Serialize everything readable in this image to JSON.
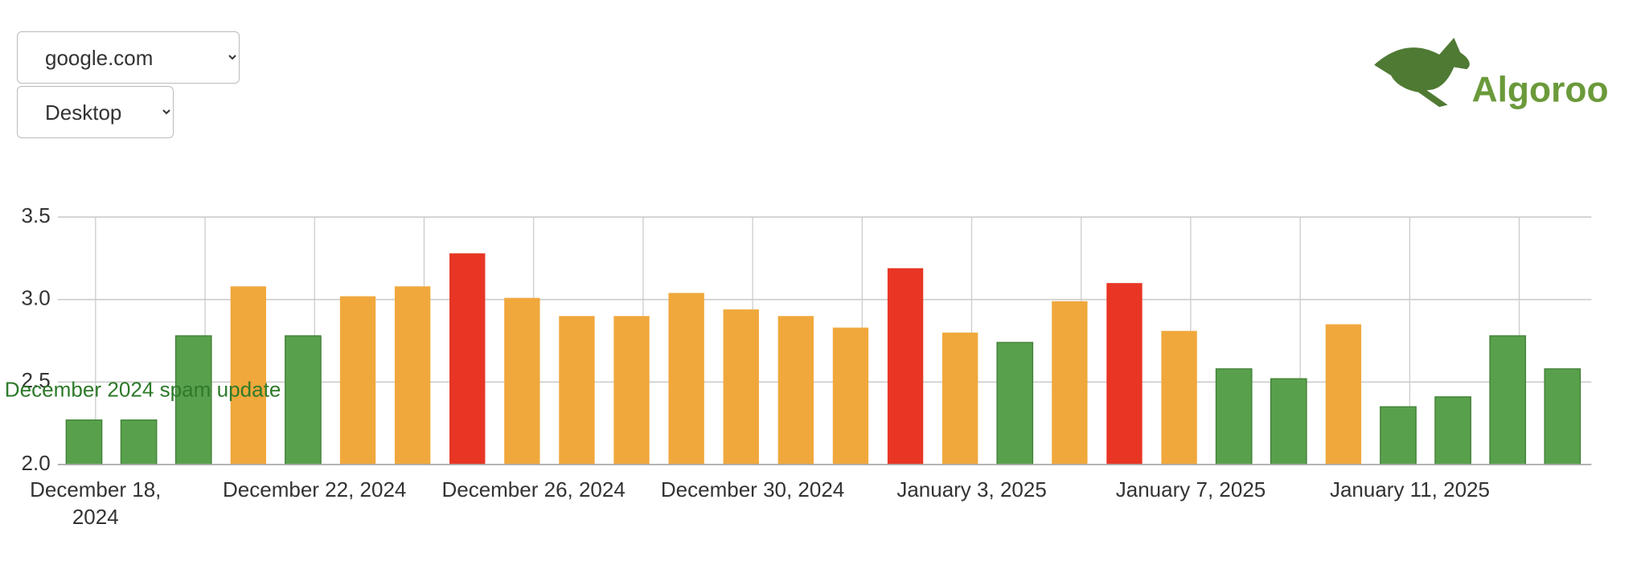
{
  "controls": {
    "site": "google.com",
    "device": "Desktop"
  },
  "logo": {
    "text": "Algoroo"
  },
  "chart_data": {
    "type": "bar",
    "categories": [
      "December 18, 2024",
      null,
      null,
      null,
      "December 22, 2024",
      null,
      null,
      null,
      "December 26, 2024",
      null,
      null,
      null,
      "December 30, 2024",
      null,
      null,
      null,
      "January 3, 2025",
      null,
      null,
      null,
      "January 7, 2025",
      null,
      null,
      null,
      "January 11, 2025",
      null,
      null,
      null
    ],
    "values": [
      2.27,
      2.27,
      2.78,
      3.08,
      2.78,
      3.02,
      3.08,
      3.28,
      3.01,
      2.9,
      2.9,
      3.04,
      2.94,
      2.9,
      2.83,
      3.19,
      2.8,
      2.74,
      2.99,
      3.1,
      2.81,
      2.58,
      2.52,
      2.85,
      2.35,
      2.41,
      2.78,
      2.58
    ],
    "colors": [
      "#58a04c",
      "#58a04c",
      "#58a04c",
      "#f0a83c",
      "#58a04c",
      "#f0a83c",
      "#f0a83c",
      "#e83524",
      "#f0a83c",
      "#f0a83c",
      "#f0a83c",
      "#f0a83c",
      "#f0a83c",
      "#f0a83c",
      "#f0a83c",
      "#e83524",
      "#f0a83c",
      "#58a04c",
      "#f0a83c",
      "#e83524",
      "#f0a83c",
      "#58a04c",
      "#58a04c",
      "#f0a83c",
      "#58a04c",
      "#58a04c",
      "#58a04c",
      "#58a04c"
    ],
    "ylim": [
      2,
      3.5
    ],
    "yticks": [
      {
        "value": 2,
        "label": "2.0"
      },
      2.5,
      {
        "value": 3,
        "label": "3.0"
      },
      3.5
    ],
    "grid": true,
    "annotation": "December 2024 spam update"
  }
}
